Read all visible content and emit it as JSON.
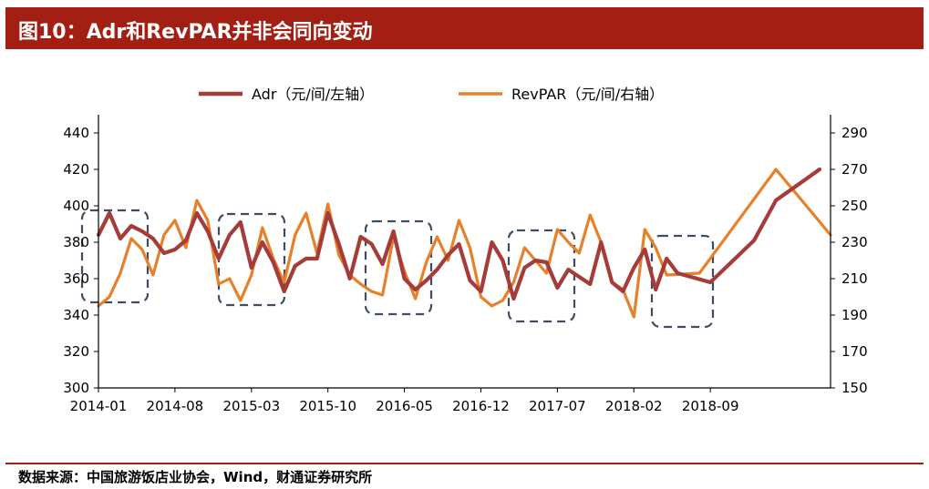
{
  "title": "图10：Adr和RevPAR并非会同向变动",
  "source": "数据来源：中国旅游饭店业协会，Wind，财通证券研究所",
  "chart_data": {
    "type": "line",
    "x_tick_labels": [
      "2014-01",
      "2014-08",
      "2015-03",
      "2015-10",
      "2016-05",
      "2016-12",
      "2017-07",
      "2018-02",
      "2018-09"
    ],
    "x_start": "2014-01",
    "x_tick_step_months": 7,
    "left_axis": {
      "min": 300,
      "max": 440,
      "step": 20,
      "ticks": [
        "300",
        "320",
        "340",
        "360",
        "380",
        "400",
        "420",
        "440"
      ]
    },
    "right_axis": {
      "min": 150,
      "max": 290,
      "step": 20,
      "ticks": [
        "150",
        "170",
        "190",
        "210",
        "230",
        "250",
        "270",
        "290"
      ]
    },
    "legend_position": "top-center",
    "grid": false,
    "series": [
      {
        "name": "Adr（元/间/左轴）",
        "axis": "left",
        "color": "#a53c3a",
        "values": [
          [
            0,
            384
          ],
          [
            1,
            396
          ],
          [
            2,
            382
          ],
          [
            3,
            389
          ],
          [
            4,
            386
          ],
          [
            5,
            382
          ],
          [
            6,
            374
          ],
          [
            7,
            376
          ],
          [
            8,
            381
          ],
          [
            9,
            396
          ],
          [
            10,
            386
          ],
          [
            11,
            371
          ],
          [
            12,
            384
          ],
          [
            13,
            391
          ],
          [
            14,
            366
          ],
          [
            15,
            380
          ],
          [
            16,
            369
          ],
          [
            17,
            353
          ],
          [
            18,
            367
          ],
          [
            19,
            371
          ],
          [
            20,
            371
          ],
          [
            21,
            396
          ],
          [
            22,
            379
          ],
          [
            23,
            360
          ],
          [
            24,
            383
          ],
          [
            25,
            379
          ],
          [
            26,
            368
          ],
          [
            27,
            386
          ],
          [
            28,
            360
          ],
          [
            29,
            354
          ],
          [
            30,
            359
          ],
          [
            31,
            365
          ],
          [
            32,
            373
          ],
          [
            33,
            379
          ],
          [
            34,
            359
          ],
          [
            35,
            353
          ],
          [
            36,
            380
          ],
          [
            37,
            370
          ],
          [
            38,
            349
          ],
          [
            39,
            366
          ],
          [
            40,
            370
          ],
          [
            41,
            369
          ],
          [
            42,
            355
          ],
          [
            43,
            365
          ],
          [
            44,
            361
          ],
          [
            45,
            357
          ],
          [
            46,
            380
          ],
          [
            47,
            358
          ],
          [
            48,
            353
          ],
          [
            49,
            366
          ],
          [
            50,
            376
          ],
          [
            51,
            354
          ],
          [
            52,
            371
          ],
          [
            53,
            363
          ],
          [
            56,
            358
          ],
          [
            60,
            381
          ],
          [
            62,
            403
          ],
          [
            66,
            420
          ]
        ]
      },
      {
        "name": "RevPAR（元/间/右轴）",
        "axis": "right",
        "color": "#e8802a",
        "values": [
          [
            0,
            195
          ],
          [
            1,
            200
          ],
          [
            2,
            213
          ],
          [
            3,
            232
          ],
          [
            4,
            226
          ],
          [
            5,
            212
          ],
          [
            6,
            234
          ],
          [
            7,
            242
          ],
          [
            8,
            227
          ],
          [
            9,
            253
          ],
          [
            10,
            242
          ],
          [
            11,
            207
          ],
          [
            12,
            210
          ],
          [
            13,
            198
          ],
          [
            14,
            212
          ],
          [
            15,
            238
          ],
          [
            16,
            221
          ],
          [
            17,
            208
          ],
          [
            18,
            234
          ],
          [
            19,
            246
          ],
          [
            20,
            224
          ],
          [
            21,
            251
          ],
          [
            22,
            223
          ],
          [
            23,
            212
          ],
          [
            24,
            207
          ],
          [
            25,
            203
          ],
          [
            26,
            201
          ],
          [
            27,
            233
          ],
          [
            28,
            214
          ],
          [
            29,
            199
          ],
          [
            30,
            219
          ],
          [
            31,
            233
          ],
          [
            32,
            220
          ],
          [
            33,
            242
          ],
          [
            34,
            227
          ],
          [
            35,
            200
          ],
          [
            36,
            195
          ],
          [
            37,
            198
          ],
          [
            38,
            208
          ],
          [
            39,
            227
          ],
          [
            40,
            220
          ],
          [
            41,
            213
          ],
          [
            42,
            237
          ],
          [
            43,
            230
          ],
          [
            44,
            224
          ],
          [
            45,
            245
          ],
          [
            46,
            230
          ],
          [
            47,
            208
          ],
          [
            48,
            204
          ],
          [
            49,
            189
          ],
          [
            50,
            237
          ],
          [
            51,
            227
          ],
          [
            52,
            212
          ],
          [
            55,
            213
          ],
          [
            62,
            270
          ],
          [
            67,
            234
          ]
        ]
      }
    ],
    "annotations": "dashed rounded boxes highlighting periods where Adr and RevPAR diverge"
  }
}
